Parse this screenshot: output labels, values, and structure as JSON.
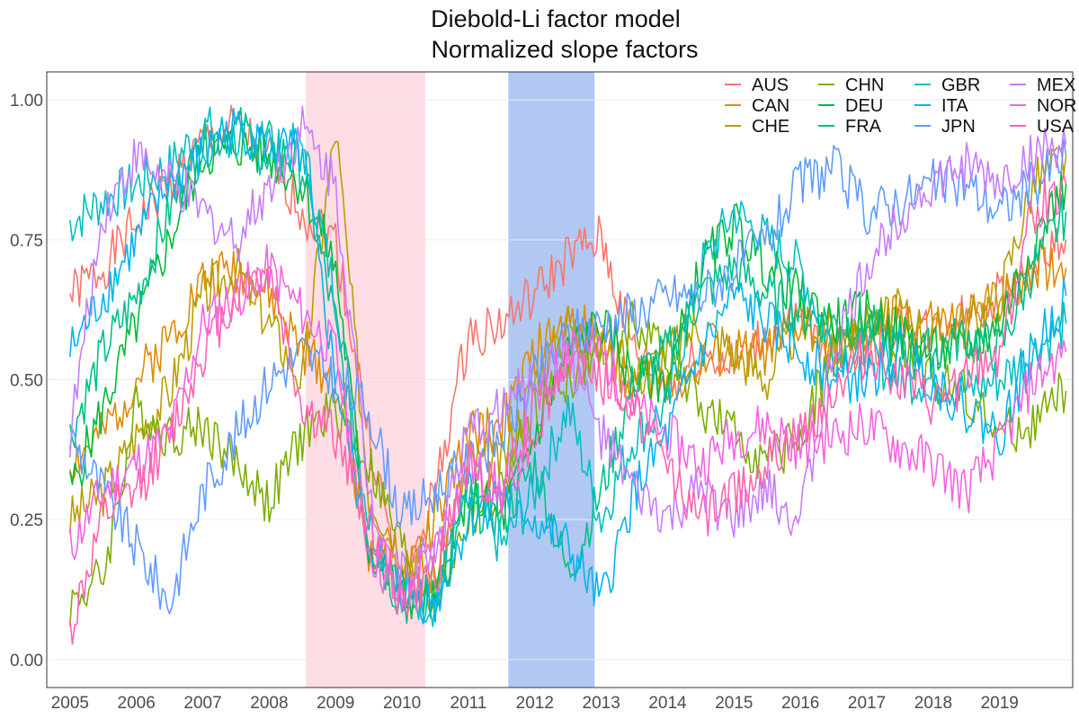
{
  "chart_data": {
    "type": "line",
    "title": "Diebold-Li factor model",
    "subtitle": "Normalized slope factors",
    "xlabel": "",
    "ylabel": "",
    "ylim": [
      0,
      1
    ],
    "yticks": [
      "0.00",
      "0.25",
      "0.50",
      "0.75",
      "1.00"
    ],
    "xticks": [
      "2005",
      "2006",
      "2007",
      "2008",
      "2009",
      "2010",
      "2011",
      "2012",
      "2013",
      "2014",
      "2015",
      "2016",
      "2017",
      "2018",
      "2019"
    ],
    "x": [
      2005.0,
      2005.5,
      2006.0,
      2006.5,
      2007.0,
      2007.5,
      2008.0,
      2008.5,
      2009.0,
      2009.5,
      2010.0,
      2010.5,
      2011.0,
      2011.5,
      2012.0,
      2012.5,
      2013.0,
      2013.5,
      2014.0,
      2014.5,
      2015.0,
      2015.5,
      2016.0,
      2016.5,
      2017.0,
      2017.5,
      2018.0,
      2018.5,
      2019.0,
      2019.5,
      2020.0
    ],
    "grid": true,
    "legend_position": "top-right",
    "shaded_periods": [
      {
        "start": 2008.55,
        "end": 2010.35,
        "color": "#ffdde4"
      },
      {
        "start": 2011.6,
        "end": 2012.9,
        "color": "#b0c8f2"
      }
    ],
    "series": [
      {
        "name": "AUS",
        "color": "#F8766D",
        "values": [
          0.65,
          0.7,
          0.78,
          0.85,
          0.92,
          0.95,
          0.9,
          0.8,
          0.75,
          0.4,
          0.12,
          0.3,
          0.58,
          0.6,
          0.65,
          0.72,
          0.75,
          0.55,
          0.48,
          0.55,
          0.52,
          0.58,
          0.6,
          0.55,
          0.55,
          0.6,
          0.58,
          0.62,
          0.65,
          0.7,
          0.75
        ]
      },
      {
        "name": "CAN",
        "color": "#DE8C00",
        "values": [
          0.35,
          0.4,
          0.5,
          0.58,
          0.68,
          0.7,
          0.65,
          0.55,
          0.5,
          0.2,
          0.15,
          0.25,
          0.4,
          0.42,
          0.55,
          0.6,
          0.58,
          0.5,
          0.5,
          0.52,
          0.55,
          0.55,
          0.6,
          0.55,
          0.58,
          0.62,
          0.6,
          0.6,
          0.65,
          0.7,
          0.7
        ]
      },
      {
        "name": "CHE",
        "color": "#B79F00",
        "values": [
          0.25,
          0.3,
          0.4,
          0.48,
          0.65,
          0.7,
          0.6,
          0.5,
          0.95,
          0.3,
          0.2,
          0.15,
          0.35,
          0.35,
          0.5,
          0.6,
          0.55,
          0.5,
          0.55,
          0.6,
          0.55,
          0.5,
          0.6,
          0.58,
          0.6,
          0.62,
          0.58,
          0.6,
          0.65,
          0.85,
          0.9
        ]
      },
      {
        "name": "CHN",
        "color": "#7CAE00",
        "values": [
          0.1,
          0.15,
          0.45,
          0.4,
          0.42,
          0.35,
          0.28,
          0.4,
          0.45,
          0.35,
          0.2,
          0.1,
          0.25,
          0.3,
          0.45,
          0.5,
          0.55,
          0.6,
          0.55,
          0.45,
          0.4,
          0.35,
          0.4,
          0.55,
          0.6,
          0.55,
          0.5,
          0.48,
          0.4,
          0.42,
          0.48
        ]
      },
      {
        "name": "DEU",
        "color": "#00BA38",
        "values": [
          0.3,
          0.45,
          0.6,
          0.75,
          0.9,
          0.92,
          0.9,
          0.85,
          0.7,
          0.2,
          0.12,
          0.1,
          0.3,
          0.25,
          0.4,
          0.55,
          0.6,
          0.5,
          0.5,
          0.7,
          0.78,
          0.7,
          0.65,
          0.6,
          0.62,
          0.58,
          0.55,
          0.55,
          0.6,
          0.75,
          0.85
        ]
      },
      {
        "name": "FRA",
        "color": "#00C08B",
        "values": [
          0.4,
          0.55,
          0.65,
          0.8,
          0.92,
          0.95,
          0.92,
          0.88,
          0.6,
          0.22,
          0.1,
          0.12,
          0.28,
          0.25,
          0.35,
          0.15,
          0.3,
          0.5,
          0.55,
          0.65,
          0.7,
          0.65,
          0.62,
          0.6,
          0.6,
          0.55,
          0.55,
          0.58,
          0.55,
          0.7,
          0.8
        ]
      },
      {
        "name": "GBR",
        "color": "#00BFC4",
        "values": [
          0.78,
          0.82,
          0.85,
          0.88,
          0.95,
          0.93,
          0.9,
          0.92,
          0.65,
          0.25,
          0.12,
          0.1,
          0.3,
          0.2,
          0.3,
          0.45,
          0.25,
          0.4,
          0.45,
          0.7,
          0.8,
          0.75,
          0.7,
          0.55,
          0.55,
          0.5,
          0.5,
          0.48,
          0.5,
          0.55,
          0.6
        ]
      },
      {
        "name": "ITA",
        "color": "#00B4F0",
        "values": [
          0.55,
          0.65,
          0.75,
          0.85,
          0.9,
          0.95,
          0.92,
          0.9,
          0.5,
          0.2,
          0.12,
          0.1,
          0.25,
          0.3,
          0.25,
          0.2,
          0.1,
          0.3,
          0.4,
          0.55,
          0.65,
          0.6,
          0.55,
          0.5,
          0.5,
          0.55,
          0.5,
          0.45,
          0.4,
          0.55,
          0.65
        ]
      },
      {
        "name": "JPN",
        "color": "#619CFF",
        "values": [
          0.4,
          0.3,
          0.2,
          0.1,
          0.3,
          0.4,
          0.5,
          0.55,
          0.5,
          0.45,
          0.25,
          0.3,
          0.35,
          0.4,
          0.5,
          0.58,
          0.6,
          0.62,
          0.65,
          0.65,
          0.7,
          0.75,
          0.85,
          0.88,
          0.8,
          0.82,
          0.85,
          0.85,
          0.8,
          0.85,
          0.9
        ]
      },
      {
        "name": "MEX",
        "color": "#C77CFF",
        "values": [
          0.4,
          0.8,
          0.9,
          0.85,
          0.8,
          0.75,
          0.85,
          0.95,
          0.85,
          0.3,
          0.15,
          0.2,
          0.4,
          0.45,
          0.5,
          0.55,
          0.4,
          0.3,
          0.25,
          0.3,
          0.25,
          0.3,
          0.25,
          0.55,
          0.7,
          0.8,
          0.85,
          0.88,
          0.85,
          0.9,
          0.92
        ]
      },
      {
        "name": "NOR",
        "color": "#F564E3",
        "values": [
          0.2,
          0.3,
          0.35,
          0.4,
          0.6,
          0.65,
          0.7,
          0.62,
          0.55,
          0.2,
          0.1,
          0.2,
          0.35,
          0.3,
          0.45,
          0.55,
          0.55,
          0.45,
          0.4,
          0.35,
          0.4,
          0.42,
          0.38,
          0.4,
          0.42,
          0.38,
          0.35,
          0.3,
          0.38,
          0.5,
          0.55
        ]
      },
      {
        "name": "USA",
        "color": "#FF64B0",
        "values": [
          0.05,
          0.25,
          0.3,
          0.4,
          0.55,
          0.65,
          0.7,
          0.45,
          0.4,
          0.25,
          0.1,
          0.15,
          0.35,
          0.3,
          0.4,
          0.55,
          0.5,
          0.45,
          0.35,
          0.25,
          0.3,
          0.35,
          0.4,
          0.48,
          0.55,
          0.5,
          0.45,
          0.5,
          0.55,
          0.8,
          0.85
        ]
      }
    ]
  }
}
